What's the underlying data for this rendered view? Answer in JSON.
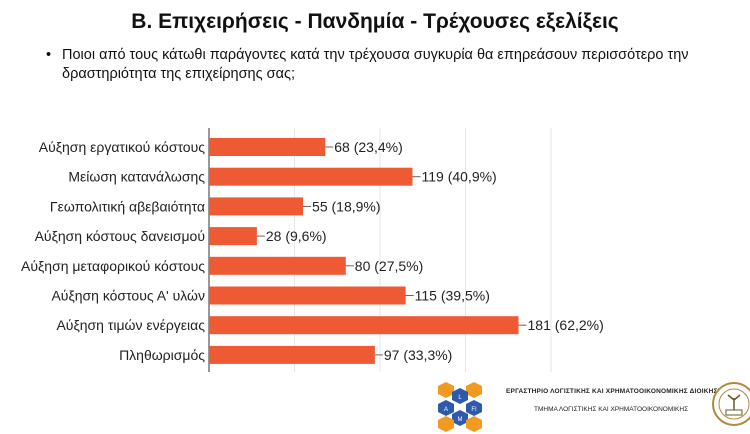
{
  "title": "Β. Επιχειρήσεις - Πανδημία - Τρέχουσες εξελίξεις",
  "question": "Ποιοι από τους κάτωθι παράγοντες κατά την τρέχουσα συγκυρία θα επηρεάσουν περισσότερο την δραστηριότητα της επιχείρησης σας;",
  "footer": {
    "line1": "ΕΡΓΑΣΤΗΡΙΟ ΛΟΓΙΣΤΙΚΗΣ ΚΑΙ ΧΡΗΜΑΤΟΟΙΚΟΝΟΜΙΚΗΣ ΔΙΟΙΚΗΣΗΣ",
    "line2": "ΤΜΗΜΑ ΛΟΓΙΣΤΙΚΗΣ ΚΑΙ ΧΡΗΜΑΤΟΟΙΚΟΝΟΜΙΚΗΣ",
    "logo_letters": [
      "L",
      "A",
      "FI",
      "M"
    ]
  },
  "chart_data": {
    "type": "bar",
    "orientation": "horizontal",
    "categories": [
      "Αύξηση εργατικού κόστους",
      "Μείωση κατανάλωσης",
      "Γεωπολιτική αβεβαιότητα",
      "Αύξηση κόστους δανεισμού",
      "Αύξηση μεταφορικού κόστους",
      "Αύξηση κόστους Α' υλών",
      "Αύξηση τιμών ενέργειας",
      "Πληθωρισμός"
    ],
    "values": [
      68,
      119,
      55,
      28,
      80,
      115,
      181,
      97
    ],
    "data_labels": [
      "68 (23,4%)",
      "119 (40,9%)",
      "55 (18,9%)",
      "28 (9,6%)",
      "80 (27,5%)",
      "115 (39,5%)",
      "181 (62,2%)",
      "97 (33,3%)"
    ],
    "xlim": [
      0,
      200
    ],
    "grid": true,
    "bar_color": "#EE5A33"
  }
}
